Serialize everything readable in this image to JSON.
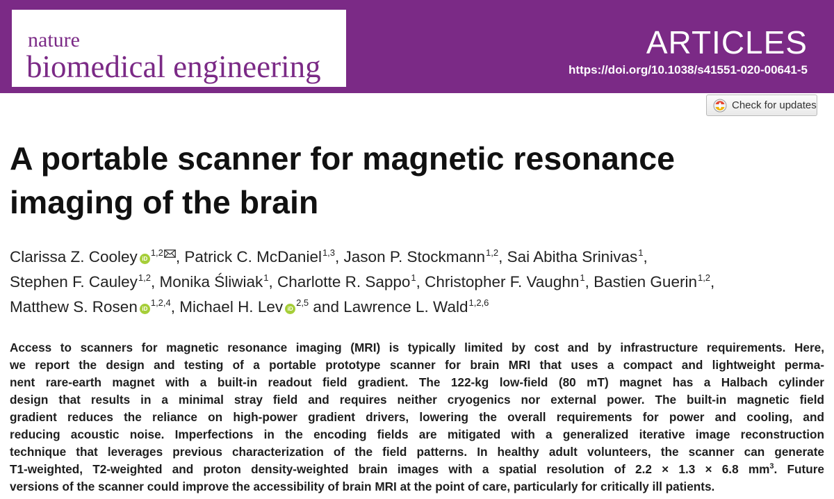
{
  "banner": {
    "journal_line1": "nature",
    "journal_line2": "biomedical engineering",
    "section": "ARTICLES",
    "doi": "https://doi.org/10.1038/s41551-020-00641-5",
    "colors": {
      "banner": "#7b2a86",
      "orcid": "#a6ce39"
    }
  },
  "check_updates": {
    "label": "Check for updates",
    "icon": "check-for-updates-icon"
  },
  "article": {
    "title_line1": "A portable scanner for magnetic resonance",
    "title_line2": "imaging of the brain"
  },
  "authors": [
    {
      "name": "Clarissa Z. Cooley",
      "affil": "1,2",
      "orcid": true,
      "corresponding": true
    },
    {
      "name": "Patrick C. McDaniel",
      "affil": "1,3"
    },
    {
      "name": "Jason P. Stockmann",
      "affil": "1,2"
    },
    {
      "name": "Sai Abitha Srinivas",
      "affil": "1"
    },
    {
      "name": "Stephen F. Cauley",
      "affil": "1,2"
    },
    {
      "name": "Monika Śliwiak",
      "affil": "1"
    },
    {
      "name": "Charlotte R. Sappo",
      "affil": "1"
    },
    {
      "name": "Christopher F. Vaughn",
      "affil": "1"
    },
    {
      "name": "Bastien Guerin",
      "affil": "1,2"
    },
    {
      "name": "Matthew S. Rosen",
      "affil": "1,2,4",
      "orcid": true
    },
    {
      "name": "Michael H. Lev",
      "affil": "2,5",
      "orcid": true
    },
    {
      "name": "Lawrence L. Wald",
      "affil": "1,2,6"
    }
  ],
  "author_text": {
    "sep": ", ",
    "and": " and ",
    "orcid_mark": "iD"
  },
  "abstract": {
    "l1": "Access to scanners for magnetic resonance imaging (MRI) is typically limited by cost and by infrastructure requirements. Here,",
    "l2": "we report the design and testing of a portable prototype scanner for brain MRI that uses a compact and lightweight perma-",
    "l3": "nent rare-earth magnet with a built-in readout field gradient. The 122-kg low-field (80 mT) magnet has a Halbach cylinder",
    "l4": "design that results in a minimal stray field and requires neither cryogenics nor external power. The built-in magnetic field",
    "l5": "gradient reduces the reliance on high-power gradient drivers, lowering the overall requirements for power and cooling, and",
    "l6": "reducing acoustic noise. Imperfections in the encoding fields are mitigated with a generalized iterative image reconstruction",
    "l7": "technique that leverages previous characterization of the field patterns. In healthy adult volunteers, the scanner can generate",
    "l8a": "T1-weighted, T2-weighted and proton density-weighted brain images with a spatial resolution of 2.2 × 1.3 × 6.8 mm",
    "l8_sup": "3",
    "l8b": ". Future",
    "l9": "versions of the scanner could improve the accessibility of brain MRI at the point of care, particularly for critically ill patients."
  }
}
